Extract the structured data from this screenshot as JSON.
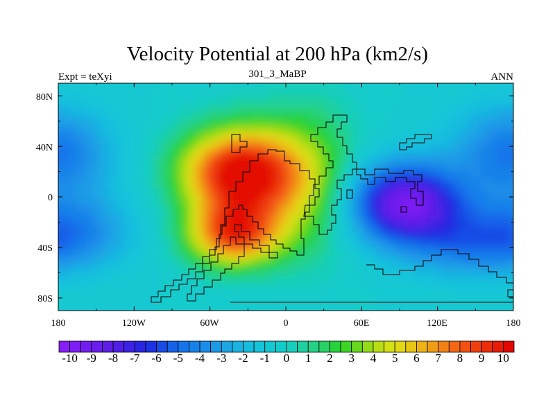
{
  "chart_data": {
    "type": "heatmap",
    "title": "Velocity Potential at 200 hPa (km2/s)",
    "left_label": "Expt = teXyi",
    "center_label": "301_3_MaBP",
    "right_label": "ANN",
    "xlim": [
      -180,
      180
    ],
    "ylim": [
      -90,
      90
    ],
    "x_ticks": [
      {
        "value": -180,
        "label": "180"
      },
      {
        "value": -120,
        "label": "120W"
      },
      {
        "value": -60,
        "label": "60W"
      },
      {
        "value": 0,
        "label": "0"
      },
      {
        "value": 60,
        "label": "60E"
      },
      {
        "value": 120,
        "label": "120E"
      },
      {
        "value": 180,
        "label": "180"
      }
    ],
    "y_ticks": [
      {
        "value": 80,
        "label": "80N"
      },
      {
        "value": 40,
        "label": "40N"
      },
      {
        "value": 0,
        "label": "0"
      },
      {
        "value": -40,
        "label": "40S"
      },
      {
        "value": -80,
        "label": "80S"
      }
    ],
    "colorbar": {
      "min": -10.5,
      "max": 10.5,
      "step": 0.5,
      "labels": [
        "-10",
        "-9",
        "-8",
        "-7",
        "-6",
        "-5",
        "-4",
        "-3",
        "-2",
        "-1",
        "0",
        "1",
        "2",
        "3",
        "4",
        "5",
        "6",
        "7",
        "8",
        "9",
        "10"
      ]
    },
    "field_features": [
      {
        "name": "maximum",
        "lon": -40,
        "lat": 20,
        "value": 10.5
      },
      {
        "name": "maximum-south",
        "lon": -40,
        "lat": -30,
        "value": 9.5
      },
      {
        "name": "minimum",
        "lon": 95,
        "lat": -5,
        "value": -10
      }
    ]
  }
}
